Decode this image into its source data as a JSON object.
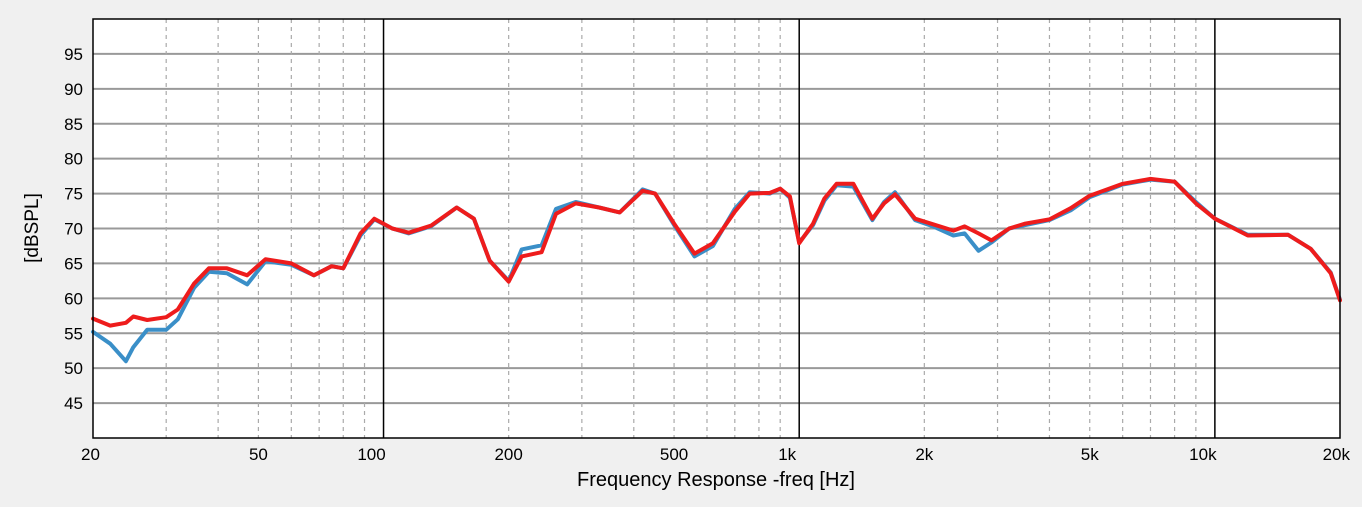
{
  "chart_data": {
    "type": "line",
    "title": "",
    "xlabel": "Frequency Response -freq [Hz]",
    "ylabel": "[dBSPL]",
    "xscale": "log",
    "xlim": [
      20,
      20000
    ],
    "ylim": [
      40,
      100
    ],
    "grid": true,
    "legend": "none",
    "yticks": [
      45,
      50,
      55,
      60,
      65,
      70,
      75,
      80,
      85,
      90,
      95
    ],
    "xticks": [
      {
        "value": 20,
        "label": "20"
      },
      {
        "value": 50,
        "label": "50"
      },
      {
        "value": 100,
        "label": "100"
      },
      {
        "value": 200,
        "label": "200"
      },
      {
        "value": 500,
        "label": "500"
      },
      {
        "value": 1000,
        "label": "1k"
      },
      {
        "value": 2000,
        "label": "2k"
      },
      {
        "value": 5000,
        "label": "5k"
      },
      {
        "value": 10000,
        "label": "10k"
      },
      {
        "value": 20000,
        "label": "20k"
      }
    ],
    "x": [
      20,
      22,
      24,
      25,
      27,
      30,
      32,
      35,
      38,
      42,
      47,
      52,
      60,
      68,
      75,
      80,
      88,
      95,
      105,
      115,
      130,
      150,
      165,
      180,
      200,
      215,
      240,
      260,
      290,
      330,
      370,
      420,
      450,
      500,
      560,
      620,
      700,
      760,
      850,
      900,
      950,
      1000,
      1080,
      1150,
      1230,
      1350,
      1500,
      1600,
      1700,
      1900,
      2100,
      2350,
      2500,
      2700,
      2900,
      3200,
      3500,
      4000,
      4500,
      5000,
      6000,
      7000,
      8000,
      9000,
      10000,
      12000,
      15000,
      17000,
      19000,
      20000
    ],
    "series": [
      {
        "color": "#3a8fc8",
        "values": [
          55.2,
          53.5,
          51.0,
          53.0,
          55.5,
          55.5,
          57.0,
          61.5,
          63.8,
          63.6,
          62.0,
          65.3,
          64.8,
          63.3,
          64.6,
          64.3,
          69.0,
          71.3,
          70.0,
          69.3,
          70.3,
          73.0,
          71.4,
          65.4,
          62.5,
          67.0,
          67.6,
          72.8,
          73.8,
          73.0,
          72.3,
          75.6,
          75.0,
          70.5,
          66.0,
          67.5,
          72.8,
          75.2,
          75.0,
          75.7,
          74.4,
          68.0,
          70.5,
          74.0,
          76.2,
          76.0,
          71.2,
          73.8,
          75.2,
          71.2,
          70.3,
          69.0,
          69.3,
          66.8,
          68.0,
          70.0,
          70.5,
          71.2,
          72.6,
          74.5,
          76.3,
          77.0,
          76.7,
          73.8,
          71.4,
          69.1,
          69.1,
          67.1,
          63.7,
          59.8
        ]
      },
      {
        "color": "#ee1c1c",
        "values": [
          57.1,
          56.1,
          56.5,
          57.4,
          56.9,
          57.3,
          58.4,
          62.1,
          64.3,
          64.3,
          63.3,
          65.6,
          65.0,
          63.3,
          64.6,
          64.3,
          69.3,
          71.4,
          70.0,
          69.4,
          70.4,
          73.0,
          71.4,
          65.4,
          62.4,
          66.0,
          66.6,
          72.1,
          73.6,
          73.0,
          72.3,
          75.4,
          75.0,
          70.7,
          66.4,
          67.9,
          72.4,
          75.0,
          75.1,
          75.7,
          74.6,
          67.9,
          70.7,
          74.3,
          76.4,
          76.4,
          71.4,
          73.6,
          74.9,
          71.4,
          70.6,
          69.7,
          70.3,
          69.3,
          68.3,
          70.0,
          70.7,
          71.3,
          72.9,
          74.7,
          76.4,
          77.1,
          76.7,
          73.6,
          71.4,
          69.0,
          69.1,
          67.1,
          63.6,
          59.7
        ]
      }
    ]
  }
}
